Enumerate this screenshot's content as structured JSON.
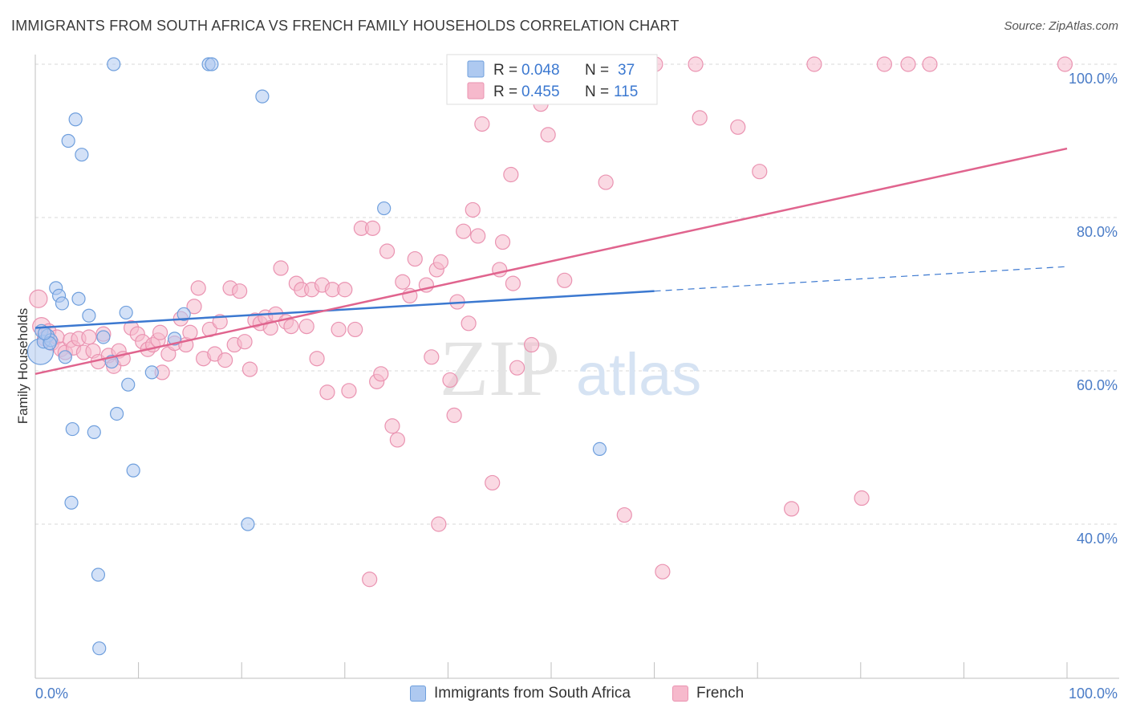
{
  "header": {
    "title": "IMMIGRANTS FROM SOUTH AFRICA VS FRENCH FAMILY HOUSEHOLDS CORRELATION CHART",
    "source": "Source: ZipAtlas.com"
  },
  "watermark": {
    "zip": "ZIP",
    "atlas": "atlas"
  },
  "colors": {
    "blue_fill": "#aec9f0",
    "blue_stroke": "#6f9fdd",
    "blue_line": "#3b78d0",
    "pink_fill": "#f6b9cc",
    "pink_stroke": "#ea93b1",
    "pink_line": "#e0648e",
    "grid": "#d9d9d9",
    "axis_label": "#4a7cc7"
  },
  "legend_top": {
    "rows": [
      {
        "r_label": "R =",
        "r_value": "0.048",
        "n_label": "N =",
        "n_value": "37"
      },
      {
        "r_label": "R =",
        "r_value": "0.455",
        "n_label": "N =",
        "n_value": "115"
      }
    ]
  },
  "legend_bottom": {
    "items": [
      {
        "label": "Immigrants from South Africa"
      },
      {
        "label": "French"
      }
    ]
  },
  "chart_data": {
    "type": "scatter",
    "title": "IMMIGRANTS FROM SOUTH AFRICA VS FRENCH FAMILY HOUSEHOLDS CORRELATION CHART",
    "xlabel": "",
    "ylabel": "Family Households",
    "xlim": [
      0,
      100
    ],
    "ylim": [
      20,
      102
    ],
    "x_tick_labels": [
      "0.0%",
      "100.0%"
    ],
    "y_ticks": [
      40,
      60,
      80,
      100
    ],
    "y_tick_labels": [
      "40.0%",
      "60.0%",
      "80.0%",
      "100.0%"
    ],
    "grid": true,
    "legend_position": "top-center",
    "series": [
      {
        "name": "Immigrants from South Africa",
        "r": 0.048,
        "n": 37,
        "trend": {
          "x0": 0,
          "y0": 65.6,
          "x1": 60,
          "y1": 70.4,
          "dashed_to_x": 100,
          "dashed_to_y": 73.6
        },
        "points": [
          [
            0.5,
            62.5,
            16
          ],
          [
            0.6,
            65.2,
            8
          ],
          [
            0.8,
            63.8,
            8
          ],
          [
            1.2,
            64.6,
            8
          ],
          [
            1.5,
            64.0,
            8
          ],
          [
            2.0,
            70.8,
            8
          ],
          [
            2.3,
            69.8,
            8
          ],
          [
            2.6,
            68.8,
            8
          ],
          [
            2.9,
            61.8,
            8
          ],
          [
            3.2,
            90.0,
            8
          ],
          [
            3.6,
            52.4,
            8
          ],
          [
            3.5,
            42.8,
            8
          ],
          [
            3.9,
            92.8,
            8
          ],
          [
            4.2,
            69.4,
            8
          ],
          [
            4.5,
            88.2,
            8
          ],
          [
            5.2,
            67.2,
            8
          ],
          [
            5.7,
            52.0,
            8
          ],
          [
            6.1,
            33.4,
            8
          ],
          [
            6.2,
            23.8,
            8
          ],
          [
            6.6,
            64.4,
            8
          ],
          [
            7.4,
            61.2,
            8
          ],
          [
            7.6,
            100.0,
            8
          ],
          [
            7.9,
            54.4,
            8
          ],
          [
            8.8,
            67.6,
            8
          ],
          [
            9.0,
            58.2,
            8
          ],
          [
            9.5,
            47.0,
            8
          ],
          [
            11.3,
            59.8,
            8
          ],
          [
            13.5,
            64.2,
            8
          ],
          [
            14.4,
            67.4,
            8
          ],
          [
            16.8,
            100.0,
            8
          ],
          [
            17.1,
            100.0,
            8
          ],
          [
            20.6,
            40.0,
            8
          ],
          [
            22.0,
            95.8,
            8
          ],
          [
            33.8,
            81.2,
            8
          ],
          [
            54.7,
            49.8,
            8
          ],
          [
            1.4,
            63.6,
            8
          ],
          [
            0.9,
            64.9,
            8
          ]
        ]
      },
      {
        "name": "French",
        "r": 0.455,
        "n": 115,
        "trend": {
          "x0": 0,
          "y0": 59.6,
          "x1": 100,
          "y1": 89.0
        },
        "points": [
          [
            0.3,
            69.4,
            11
          ],
          [
            0.6,
            65.8,
            11
          ],
          [
            0.9,
            64.2,
            9
          ],
          [
            1.3,
            65.2,
            9
          ],
          [
            1.6,
            63.6,
            9
          ],
          [
            2.1,
            64.4,
            9
          ],
          [
            2.5,
            62.8,
            9
          ],
          [
            2.9,
            62.4,
            9
          ],
          [
            3.4,
            64.0,
            9
          ],
          [
            3.7,
            63.0,
            9
          ],
          [
            4.2,
            64.2,
            9
          ],
          [
            4.7,
            62.4,
            9
          ],
          [
            5.2,
            64.4,
            9
          ],
          [
            5.6,
            62.6,
            9
          ],
          [
            6.1,
            61.2,
            9
          ],
          [
            6.6,
            64.8,
            9
          ],
          [
            7.1,
            62.0,
            9
          ],
          [
            7.6,
            60.6,
            9
          ],
          [
            8.1,
            62.6,
            9
          ],
          [
            8.5,
            61.6,
            9
          ],
          [
            9.3,
            65.6,
            9
          ],
          [
            9.9,
            64.8,
            9
          ],
          [
            10.4,
            63.8,
            9
          ],
          [
            10.9,
            62.8,
            9
          ],
          [
            11.4,
            63.4,
            9
          ],
          [
            11.9,
            64.0,
            9
          ],
          [
            12.3,
            59.8,
            9
          ],
          [
            12.9,
            62.2,
            9
          ],
          [
            13.5,
            63.6,
            9
          ],
          [
            14.1,
            66.8,
            9
          ],
          [
            14.6,
            63.4,
            9
          ],
          [
            15.0,
            65.0,
            9
          ],
          [
            15.4,
            68.4,
            9
          ],
          [
            15.8,
            70.8,
            9
          ],
          [
            16.3,
            61.6,
            9
          ],
          [
            16.9,
            65.4,
            9
          ],
          [
            17.4,
            62.2,
            9
          ],
          [
            17.9,
            66.4,
            9
          ],
          [
            18.4,
            61.4,
            9
          ],
          [
            18.9,
            70.8,
            9
          ],
          [
            19.3,
            63.4,
            9
          ],
          [
            19.8,
            70.4,
            9
          ],
          [
            20.3,
            63.8,
            9
          ],
          [
            20.8,
            60.2,
            9
          ],
          [
            21.3,
            66.6,
            9
          ],
          [
            21.8,
            66.2,
            9
          ],
          [
            22.3,
            67.0,
            9
          ],
          [
            22.8,
            65.6,
            9
          ],
          [
            23.3,
            67.4,
            9
          ],
          [
            23.8,
            73.4,
            9
          ],
          [
            24.3,
            66.4,
            9
          ],
          [
            24.8,
            65.8,
            9
          ],
          [
            25.3,
            71.4,
            9
          ],
          [
            25.8,
            70.6,
            9
          ],
          [
            26.3,
            65.8,
            9
          ],
          [
            26.8,
            70.6,
            9
          ],
          [
            27.3,
            61.6,
            9
          ],
          [
            27.8,
            71.2,
            9
          ],
          [
            28.3,
            57.2,
            9
          ],
          [
            28.8,
            70.6,
            9
          ],
          [
            29.4,
            65.4,
            9
          ],
          [
            30.0,
            70.6,
            9
          ],
          [
            30.4,
            57.4,
            9
          ],
          [
            31.0,
            65.4,
            9
          ],
          [
            31.6,
            78.6,
            9
          ],
          [
            32.7,
            78.6,
            9
          ],
          [
            33.1,
            58.6,
            9
          ],
          [
            33.5,
            59.6,
            9
          ],
          [
            34.1,
            75.6,
            9
          ],
          [
            34.6,
            52.8,
            9
          ],
          [
            35.1,
            51.0,
            9
          ],
          [
            35.6,
            71.6,
            9
          ],
          [
            36.3,
            69.8,
            9
          ],
          [
            36.8,
            74.6,
            9
          ],
          [
            37.9,
            71.2,
            9
          ],
          [
            38.4,
            61.8,
            9
          ],
          [
            38.9,
            73.2,
            9
          ],
          [
            39.3,
            74.2,
            9
          ],
          [
            39.1,
            40.0,
            9
          ],
          [
            40.2,
            58.8,
            9
          ],
          [
            40.6,
            54.2,
            9
          ],
          [
            40.9,
            69.0,
            9
          ],
          [
            41.5,
            78.2,
            9
          ],
          [
            42.0,
            66.2,
            9
          ],
          [
            42.4,
            81.0,
            9
          ],
          [
            42.9,
            77.6,
            9
          ],
          [
            43.3,
            92.2,
            9
          ],
          [
            44.3,
            45.4,
            9
          ],
          [
            45.0,
            73.2,
            9
          ],
          [
            45.3,
            76.8,
            9
          ],
          [
            46.1,
            85.6,
            9
          ],
          [
            46.3,
            71.4,
            9
          ],
          [
            46.7,
            60.4,
            9
          ],
          [
            48.1,
            63.4,
            9
          ],
          [
            49.0,
            94.8,
            9
          ],
          [
            49.7,
            90.8,
            9
          ],
          [
            51.3,
            71.8,
            9
          ],
          [
            52.1,
            100.0,
            9
          ],
          [
            55.3,
            84.6,
            9
          ],
          [
            57.1,
            41.2,
            9
          ],
          [
            60.1,
            100.0,
            9
          ],
          [
            60.8,
            33.8,
            9
          ],
          [
            64.0,
            100.0,
            9
          ],
          [
            64.4,
            93.0,
            9
          ],
          [
            68.1,
            91.8,
            9
          ],
          [
            70.2,
            86.0,
            9
          ],
          [
            73.3,
            42.0,
            9
          ],
          [
            75.5,
            100.0,
            9
          ],
          [
            80.1,
            43.4,
            9
          ],
          [
            82.3,
            100.0,
            9
          ],
          [
            84.6,
            100.0,
            9
          ],
          [
            86.7,
            100.0,
            9
          ],
          [
            99.8,
            100.0,
            9
          ],
          [
            32.4,
            32.8,
            9
          ],
          [
            12.1,
            65.0,
            9
          ]
        ]
      }
    ]
  }
}
